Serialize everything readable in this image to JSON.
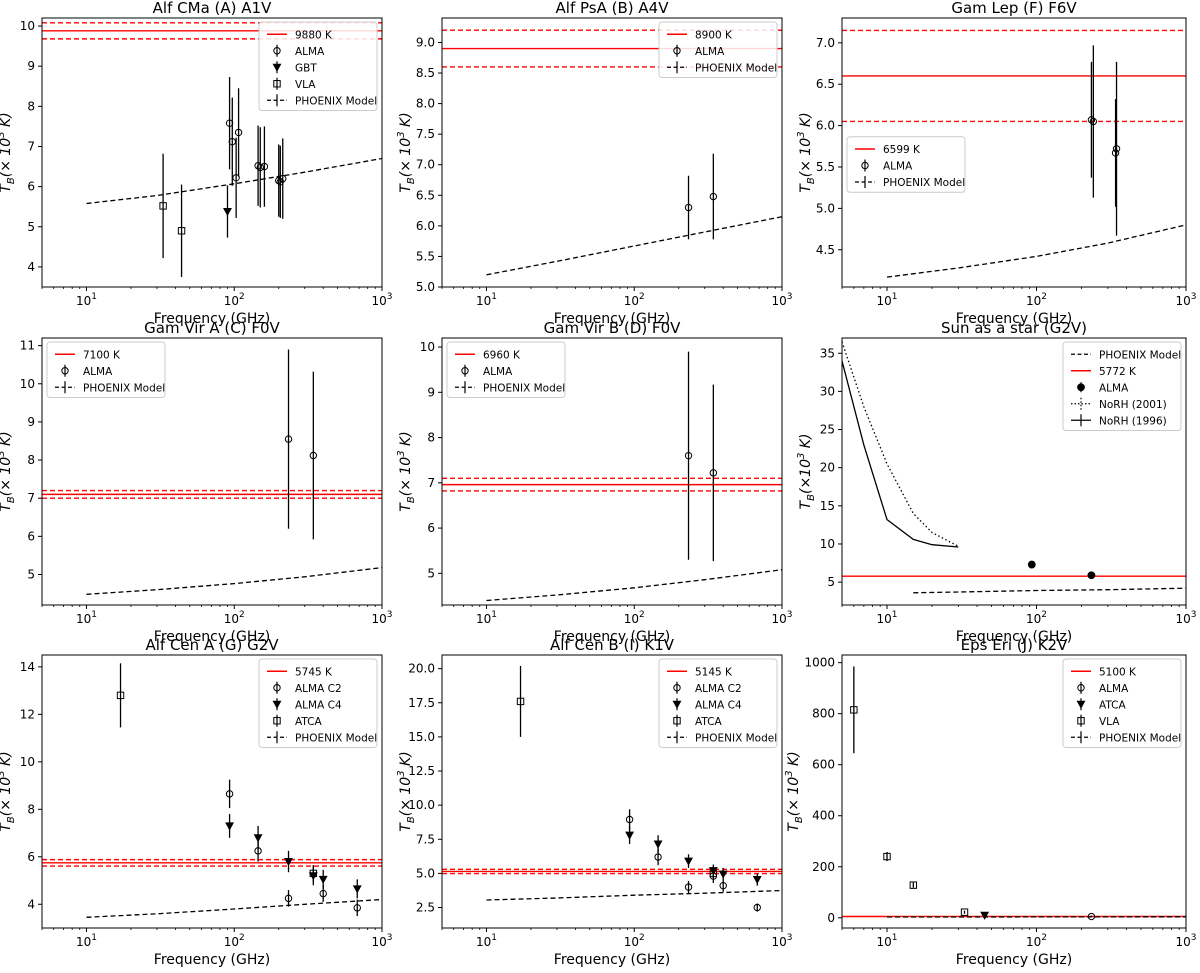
{
  "colors": {
    "photosphere": "#ff0000",
    "model": "#000000",
    "data": "#000000"
  },
  "chart_data": [
    {
      "type": "scatter",
      "title": "Alf CMa (A)  A1V",
      "xlabel": "Frequency (GHz)",
      "ylabel": "T_B(× 10^3 K)",
      "xscale": "log",
      "xlim": [
        5,
        1000
      ],
      "ylim": [
        3.5,
        10.2
      ],
      "yticks": [
        4,
        5,
        6,
        7,
        8,
        9,
        10
      ],
      "ytick_labels": [
        "4",
        "5",
        "6",
        "7",
        "8",
        "9",
        "10"
      ],
      "xtick_labels": [
        "10^1",
        "10^2",
        "10^3"
      ],
      "legend_loc": "top-right",
      "hlines": [
        {
          "value": 9.88,
          "style": "solid",
          "label": "9880 K"
        },
        {
          "value": 10.08,
          "style": "dashed"
        },
        {
          "value": 9.68,
          "style": "dashed"
        }
      ],
      "model": {
        "label": "PHOENIX Model",
        "x": [
          10,
          30,
          100,
          300,
          1000
        ],
        "y": [
          5.58,
          5.78,
          6.07,
          6.36,
          6.7
        ]
      },
      "series": [
        {
          "name": "ALMA",
          "marker": "o",
          "points": [
            [
              93,
              7.58,
              1.15
            ],
            [
              97,
              7.12,
              1.1
            ],
            [
              103,
              6.22,
              1.0
            ],
            [
              107,
              7.35,
              1.1
            ],
            [
              145,
              6.52,
              1.0
            ],
            [
              150,
              6.48,
              1.0
            ],
            [
              160,
              6.5,
              1.0
            ],
            [
              200,
              6.15,
              0.9
            ],
            [
              205,
              6.12,
              0.9
            ],
            [
              213,
              6.2,
              1.0
            ]
          ]
        },
        {
          "name": "GBT",
          "marker": "v",
          "points": [
            [
              90,
              5.38,
              0.65
            ]
          ]
        },
        {
          "name": "VLA",
          "marker": "s",
          "points": [
            [
              33,
              5.52,
              1.3
            ],
            [
              44,
              4.9,
              1.15
            ]
          ]
        }
      ]
    },
    {
      "type": "scatter",
      "title": "Alf PsA (B)  A4V",
      "xlabel": "Frequency (GHz)",
      "ylabel": "T_B(× 10^3 K)",
      "xscale": "log",
      "xlim": [
        5,
        1000
      ],
      "ylim": [
        5.0,
        9.4
      ],
      "yticks": [
        5.0,
        5.5,
        6.0,
        6.5,
        7.0,
        7.5,
        8.0,
        8.5,
        9.0
      ],
      "ytick_labels": [
        "5.0",
        "5.5",
        "6.0",
        "6.5",
        "7.0",
        "7.5",
        "8.0",
        "8.5",
        "9.0"
      ],
      "xtick_labels": [
        "10^1",
        "10^2",
        "10^3"
      ],
      "legend_loc": "top-right",
      "hlines": [
        {
          "value": 8.9,
          "style": "solid",
          "label": "8900 K"
        },
        {
          "value": 9.2,
          "style": "dashed"
        },
        {
          "value": 8.6,
          "style": "dashed"
        }
      ],
      "model": {
        "label": "PHOENIX Model",
        "x": [
          10,
          30,
          100,
          300,
          1000
        ],
        "y": [
          5.2,
          5.42,
          5.67,
          5.9,
          6.15
        ]
      },
      "series": [
        {
          "name": "ALMA",
          "marker": "o",
          "points": [
            [
              233,
              6.3,
              0.52
            ],
            [
              343,
              6.48,
              0.7
            ]
          ]
        }
      ]
    },
    {
      "type": "scatter",
      "title": "Gam Lep (F)  F6V",
      "xlabel": "Frequency (GHz)",
      "ylabel": "T_B(× 10^3 K)",
      "xscale": "log",
      "xlim": [
        5,
        1000
      ],
      "ylim": [
        4.05,
        7.3
      ],
      "yticks": [
        4.5,
        5.0,
        5.5,
        6.0,
        6.5,
        7.0
      ],
      "ytick_labels": [
        "4.5",
        "5.0",
        "5.5",
        "6.0",
        "6.5",
        "7.0"
      ],
      "xtick_labels": [
        "10^1",
        "10^2",
        "10^3"
      ],
      "legend_loc": "center-left",
      "hlines": [
        {
          "value": 6.6,
          "style": "solid",
          "label": "6599 K"
        },
        {
          "value": 7.15,
          "style": "dashed"
        },
        {
          "value": 6.05,
          "style": "dashed"
        }
      ],
      "model": {
        "label": "PHOENIX Model",
        "x": [
          10,
          30,
          100,
          300,
          1000
        ],
        "y": [
          4.17,
          4.28,
          4.42,
          4.58,
          4.8
        ]
      },
      "series": [
        {
          "name": "ALMA",
          "marker": "o",
          "points": [
            [
              233,
              6.07,
              0.7
            ],
            [
              240,
              6.05,
              0.92
            ],
            [
              338,
              5.67,
              0.65
            ],
            [
              343,
              5.72,
              1.05
            ]
          ]
        }
      ]
    },
    {
      "type": "scatter",
      "title": "Gam Vir A (C)  F0V",
      "xlabel": "Frequency (GHz)",
      "ylabel": "T_B(× 10^3 K)",
      "xscale": "log",
      "xlim": [
        5,
        1000
      ],
      "ylim": [
        4.2,
        11.2
      ],
      "yticks": [
        5,
        6,
        7,
        8,
        9,
        10,
        11
      ],
      "ytick_labels": [
        "5",
        "6",
        "7",
        "8",
        "9",
        "10",
        "11"
      ],
      "xtick_labels": [
        "10^1",
        "10^2",
        "10^3"
      ],
      "legend_loc": "top-left",
      "hlines": [
        {
          "value": 7.1,
          "style": "solid",
          "label": "7100 K"
        },
        {
          "value": 7.2,
          "style": "dashed"
        },
        {
          "value": 7.0,
          "style": "dashed"
        }
      ],
      "model": {
        "label": "PHOENIX Model",
        "x": [
          10,
          30,
          100,
          300,
          1000
        ],
        "y": [
          4.48,
          4.6,
          4.76,
          4.94,
          5.18
        ]
      },
      "series": [
        {
          "name": "ALMA",
          "marker": "o",
          "points": [
            [
              233,
              8.55,
              2.35
            ],
            [
              343,
              8.12,
              2.2
            ]
          ]
        }
      ]
    },
    {
      "type": "scatter",
      "title": "Gam Vir B (D)  F0V",
      "xlabel": "Frequency (GHz)",
      "ylabel": "T_B(× 10^3 K)",
      "xscale": "log",
      "xlim": [
        5,
        1000
      ],
      "ylim": [
        4.3,
        10.2
      ],
      "yticks": [
        5,
        6,
        7,
        8,
        9,
        10
      ],
      "ytick_labels": [
        "5",
        "6",
        "7",
        "8",
        "9",
        "10"
      ],
      "xtick_labels": [
        "10^1",
        "10^2",
        "10^3"
      ],
      "legend_loc": "top-left",
      "hlines": [
        {
          "value": 6.96,
          "style": "solid",
          "label": "6960 K"
        },
        {
          "value": 7.1,
          "style": "dashed"
        },
        {
          "value": 6.82,
          "style": "dashed"
        }
      ],
      "model": {
        "label": "PHOENIX Model",
        "x": [
          10,
          30,
          100,
          300,
          1000
        ],
        "y": [
          4.4,
          4.52,
          4.68,
          4.86,
          5.08
        ]
      },
      "series": [
        {
          "name": "ALMA",
          "marker": "o",
          "points": [
            [
              233,
              7.6,
              2.3
            ],
            [
              343,
              7.22,
              1.95
            ]
          ]
        }
      ]
    },
    {
      "type": "line",
      "title": "Sun as a star (G2V)",
      "xlabel": "Frequency (GHz)",
      "ylabel": "T_B(×10^3 K)",
      "xscale": "log",
      "xlim": [
        5,
        1000
      ],
      "ylim": [
        2,
        37
      ],
      "yticks": [
        5,
        10,
        15,
        20,
        25,
        30,
        35
      ],
      "ytick_labels": [
        "5",
        "10",
        "15",
        "20",
        "25",
        "30",
        "35"
      ],
      "xtick_labels": [
        "10^1",
        "10^2",
        "10^3"
      ],
      "legend_loc": "top-right",
      "hlines": [
        {
          "value": 5.772,
          "style": "solid",
          "label": "5772 K"
        }
      ],
      "model": {
        "label": "PHOENIX Model",
        "x": [
          15,
          30,
          100,
          300,
          1000
        ],
        "y": [
          3.6,
          3.7,
          3.9,
          4.0,
          4.2
        ]
      },
      "series": [
        {
          "name": "ALMA",
          "marker": "filled-o",
          "points": [
            [
              93,
              7.3,
              0.25
            ],
            [
              233,
              5.9,
              0.25
            ]
          ]
        },
        {
          "name": "NoRH (2001)",
          "style": "dotted",
          "x": [
            5,
            7,
            10,
            15,
            20,
            30
          ],
          "y": [
            36.5,
            28,
            20.5,
            14,
            11.5,
            9.7
          ]
        },
        {
          "name": "NoRH (1996)",
          "style": "solid",
          "x": [
            5,
            7,
            10,
            15,
            20,
            30
          ],
          "y": [
            34,
            23,
            13.2,
            10.6,
            9.9,
            9.6
          ]
        }
      ]
    },
    {
      "type": "scatter",
      "title": "Alf Cen A (G)  G2V",
      "xlabel": "Frequency (GHz)",
      "ylabel": "T_B(× 10^3 K)",
      "xscale": "log",
      "xlim": [
        5,
        1000
      ],
      "ylim": [
        3.0,
        14.5
      ],
      "yticks": [
        4,
        6,
        8,
        10,
        12,
        14
      ],
      "ytick_labels": [
        "4",
        "6",
        "8",
        "10",
        "12",
        "14"
      ],
      "xtick_labels": [
        "10^1",
        "10^2",
        "10^3"
      ],
      "legend_loc": "top-right",
      "hlines": [
        {
          "value": 5.745,
          "style": "solid",
          "label": "5745 K"
        },
        {
          "value": 5.88,
          "style": "dashed"
        },
        {
          "value": 5.61,
          "style": "dashed"
        }
      ],
      "model": {
        "label": "PHOENIX Model",
        "x": [
          10,
          30,
          100,
          300,
          1000
        ],
        "y": [
          3.45,
          3.6,
          3.8,
          4.0,
          4.2
        ]
      },
      "series": [
        {
          "name": "ALMA C2",
          "marker": "o",
          "points": [
            [
              93,
              8.65,
              0.6
            ],
            [
              145,
              6.25,
              0.45
            ],
            [
              233,
              4.25,
              0.35
            ],
            [
              400,
              4.45,
              0.35
            ],
            [
              680,
              3.85,
              0.35
            ]
          ]
        },
        {
          "name": "ALMA C4",
          "marker": "v",
          "points": [
            [
              93,
              7.3,
              0.5
            ],
            [
              145,
              6.8,
              0.5
            ],
            [
              233,
              5.8,
              0.45
            ],
            [
              343,
              5.2,
              0.4
            ],
            [
              400,
              5.05,
              0.4
            ],
            [
              680,
              4.65,
              0.4
            ]
          ]
        },
        {
          "name": "ATCA",
          "marker": "s",
          "points": [
            [
              17,
              12.8,
              1.35
            ],
            [
              343,
              5.3,
              0.35
            ]
          ]
        }
      ]
    },
    {
      "type": "scatter",
      "title": "Alf Cen B (I)  K1V",
      "xlabel": "Frequency (GHz)",
      "ylabel": "T_B(× 10^3 K)",
      "xscale": "log",
      "xlim": [
        5,
        1000
      ],
      "ylim": [
        1.0,
        21.0
      ],
      "yticks": [
        2.5,
        5.0,
        7.5,
        10.0,
        12.5,
        15.0,
        17.5,
        20.0
      ],
      "ytick_labels": [
        "2.5",
        "5.0",
        "7.5",
        "10.0",
        "12.5",
        "15.0",
        "17.5",
        "20.0"
      ],
      "xtick_labels": [
        "10^1",
        "10^2",
        "10^3"
      ],
      "legend_loc": "top-right",
      "hlines": [
        {
          "value": 5.145,
          "style": "solid",
          "label": "5145 K"
        },
        {
          "value": 5.3,
          "style": "dashed"
        },
        {
          "value": 4.99,
          "style": "dashed"
        }
      ],
      "model": {
        "label": "PHOENIX Model",
        "x": [
          10,
          30,
          100,
          300,
          1000
        ],
        "y": [
          3.05,
          3.2,
          3.4,
          3.55,
          3.75
        ]
      },
      "series": [
        {
          "name": "ALMA C2",
          "marker": "o",
          "points": [
            [
              93,
              8.95,
              0.75
            ],
            [
              145,
              6.2,
              0.6
            ],
            [
              233,
              4.0,
              0.45
            ],
            [
              343,
              4.8,
              0.5
            ],
            [
              400,
              4.1,
              0.45
            ],
            [
              680,
              2.5,
              0.3
            ]
          ]
        },
        {
          "name": "ALMA C4",
          "marker": "v",
          "points": [
            [
              93,
              7.8,
              0.65
            ],
            [
              145,
              7.15,
              0.65
            ],
            [
              233,
              5.9,
              0.5
            ],
            [
              343,
              5.2,
              0.45
            ],
            [
              400,
              4.95,
              0.45
            ],
            [
              680,
              4.55,
              0.45
            ]
          ]
        },
        {
          "name": "ATCA",
          "marker": "s",
          "points": [
            [
              17,
              17.6,
              2.6
            ],
            [
              343,
              5.0,
              0.4
            ]
          ]
        }
      ]
    },
    {
      "type": "scatter",
      "title": "Eps Eri (J)  K2V",
      "xlabel": "Frequency (GHz)",
      "ylabel": "T_B(× 10^3 K)",
      "xscale": "log",
      "xlim": [
        5,
        1000
      ],
      "ylim": [
        -40,
        1030
      ],
      "yticks": [
        0,
        200,
        400,
        600,
        800,
        1000
      ],
      "ytick_labels": [
        "0",
        "200",
        "400",
        "600",
        "800",
        "1000"
      ],
      "xtick_labels": [
        "10^1",
        "10^2",
        "10^3"
      ],
      "legend_loc": "top-right",
      "hlines": [
        {
          "value": 5.1,
          "style": "solid",
          "label": "5100 K"
        }
      ],
      "model": {
        "label": "PHOENIX Model",
        "x": [
          10,
          100,
          1000
        ],
        "y": [
          3.0,
          3.5,
          4.0
        ]
      },
      "series": [
        {
          "name": "ALMA",
          "marker": "o",
          "points": [
            [
              233,
              5,
              4
            ]
          ]
        },
        {
          "name": "ATCA",
          "marker": "v",
          "points": [
            [
              45,
              10,
              6
            ]
          ]
        },
        {
          "name": "VLA",
          "marker": "s",
          "points": [
            [
              6,
              815,
              170
            ],
            [
              10,
              240,
              18
            ],
            [
              15,
              128,
              10
            ],
            [
              33,
              22,
              6
            ]
          ]
        }
      ]
    }
  ]
}
